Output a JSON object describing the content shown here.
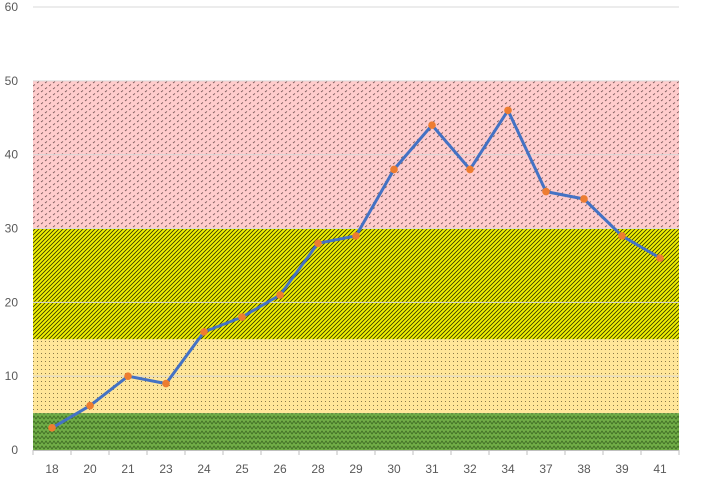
{
  "chart_data": {
    "type": "line",
    "title": "",
    "xlabel": "",
    "ylabel": "",
    "categories": [
      "18",
      "20",
      "21",
      "23",
      "24",
      "25",
      "26",
      "28",
      "29",
      "30",
      "31",
      "32",
      "34",
      "37",
      "38",
      "39",
      "41"
    ],
    "series": [
      {
        "values": [
          3,
          6,
          10,
          9,
          16,
          18,
          21,
          28,
          29,
          38,
          44,
          38,
          46,
          35,
          34,
          29,
          26
        ],
        "color": "#4472c4",
        "marker_color": "#ed7d31"
      }
    ],
    "ylim": [
      0,
      60
    ],
    "yticks": [
      0,
      10,
      20,
      30,
      40,
      50,
      60
    ],
    "grid": true,
    "legend": "none",
    "bands": [
      {
        "from": 0,
        "to": 5,
        "color": "#70ad47",
        "pattern": "zigzag"
      },
      {
        "from": 5,
        "to": 15,
        "color": "#ffe699",
        "pattern": "dots"
      },
      {
        "from": 15,
        "to": 30,
        "color": "#f2f200",
        "pattern": "diagonal"
      },
      {
        "from": 30,
        "to": 50,
        "color": "#ffcccc",
        "pattern": "dashes"
      }
    ]
  }
}
